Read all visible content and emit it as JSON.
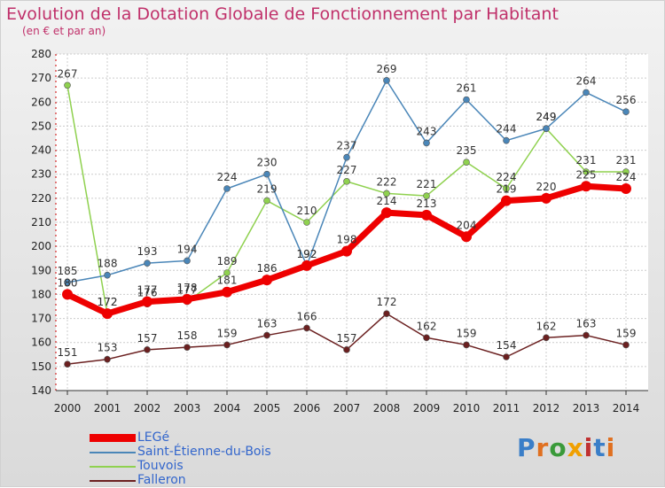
{
  "title": "Evolution de la Dotation Globale de Fonctionnement par Habitant",
  "subtitle": "(en € et par an)",
  "logo_text": "Proxiti",
  "chart_data": {
    "type": "line",
    "title": "Evolution de la Dotation Globale de Fonctionnement par Habitant",
    "subtitle": "(en € et par an)",
    "x": [
      "2000",
      "2001",
      "2002",
      "2003",
      "2004",
      "2005",
      "2006",
      "2007",
      "2008",
      "2009",
      "2010",
      "2011",
      "2012",
      "2013",
      "2014"
    ],
    "ylim": [
      140,
      280
    ],
    "yticks": [
      140,
      150,
      160,
      170,
      180,
      190,
      200,
      210,
      220,
      230,
      240,
      250,
      260,
      270,
      280
    ],
    "grid": true,
    "legend_position": "bottom-left",
    "series": [
      {
        "name": "LEGé",
        "color": "#ee0000",
        "values": [
          180,
          172,
          177,
          178,
          181,
          186,
          192,
          198,
          214,
          213,
          204,
          219,
          220,
          225,
          224
        ]
      },
      {
        "name": "Saint-Étienne-du-Bois",
        "color": "#4a86b8",
        "values": [
          185,
          188,
          193,
          194,
          224,
          230,
          192,
          237,
          269,
          243,
          261,
          244,
          249,
          264,
          256
        ]
      },
      {
        "name": "Touvois",
        "color": "#8fd14f",
        "values": [
          267,
          172,
          176,
          177,
          189,
          219,
          210,
          227,
          222,
          221,
          235,
          224,
          249,
          231,
          231
        ]
      },
      {
        "name": "Falleron",
        "color": "#6b2020",
        "values": [
          151,
          153,
          157,
          158,
          159,
          163,
          166,
          157,
          172,
          162,
          159,
          154,
          162,
          163,
          159
        ]
      }
    ]
  }
}
